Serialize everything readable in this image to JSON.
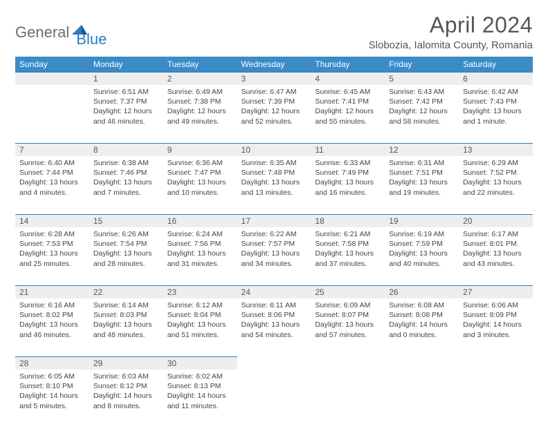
{
  "logo": {
    "part1": "General",
    "part2": "Blue"
  },
  "title": "April 2024",
  "location": "Slobozia, Ialomita County, Romania",
  "colors": {
    "header_bg": "#3b8bc8",
    "daynum_bg": "#eeeeee",
    "border": "#2b7bbf",
    "text": "#444444",
    "title_text": "#555555"
  },
  "weekdays": [
    "Sunday",
    "Monday",
    "Tuesday",
    "Wednesday",
    "Thursday",
    "Friday",
    "Saturday"
  ],
  "weeks": [
    [
      null,
      {
        "n": "1",
        "sr": "Sunrise: 6:51 AM",
        "ss": "Sunset: 7:37 PM",
        "d1": "Daylight: 12 hours",
        "d2": "and 46 minutes."
      },
      {
        "n": "2",
        "sr": "Sunrise: 6:49 AM",
        "ss": "Sunset: 7:38 PM",
        "d1": "Daylight: 12 hours",
        "d2": "and 49 minutes."
      },
      {
        "n": "3",
        "sr": "Sunrise: 6:47 AM",
        "ss": "Sunset: 7:39 PM",
        "d1": "Daylight: 12 hours",
        "d2": "and 52 minutes."
      },
      {
        "n": "4",
        "sr": "Sunrise: 6:45 AM",
        "ss": "Sunset: 7:41 PM",
        "d1": "Daylight: 12 hours",
        "d2": "and 55 minutes."
      },
      {
        "n": "5",
        "sr": "Sunrise: 6:43 AM",
        "ss": "Sunset: 7:42 PM",
        "d1": "Daylight: 12 hours",
        "d2": "and 58 minutes."
      },
      {
        "n": "6",
        "sr": "Sunrise: 6:42 AM",
        "ss": "Sunset: 7:43 PM",
        "d1": "Daylight: 13 hours",
        "d2": "and 1 minute."
      }
    ],
    [
      {
        "n": "7",
        "sr": "Sunrise: 6:40 AM",
        "ss": "Sunset: 7:44 PM",
        "d1": "Daylight: 13 hours",
        "d2": "and 4 minutes."
      },
      {
        "n": "8",
        "sr": "Sunrise: 6:38 AM",
        "ss": "Sunset: 7:46 PM",
        "d1": "Daylight: 13 hours",
        "d2": "and 7 minutes."
      },
      {
        "n": "9",
        "sr": "Sunrise: 6:36 AM",
        "ss": "Sunset: 7:47 PM",
        "d1": "Daylight: 13 hours",
        "d2": "and 10 minutes."
      },
      {
        "n": "10",
        "sr": "Sunrise: 6:35 AM",
        "ss": "Sunset: 7:48 PM",
        "d1": "Daylight: 13 hours",
        "d2": "and 13 minutes."
      },
      {
        "n": "11",
        "sr": "Sunrise: 6:33 AM",
        "ss": "Sunset: 7:49 PM",
        "d1": "Daylight: 13 hours",
        "d2": "and 16 minutes."
      },
      {
        "n": "12",
        "sr": "Sunrise: 6:31 AM",
        "ss": "Sunset: 7:51 PM",
        "d1": "Daylight: 13 hours",
        "d2": "and 19 minutes."
      },
      {
        "n": "13",
        "sr": "Sunrise: 6:29 AM",
        "ss": "Sunset: 7:52 PM",
        "d1": "Daylight: 13 hours",
        "d2": "and 22 minutes."
      }
    ],
    [
      {
        "n": "14",
        "sr": "Sunrise: 6:28 AM",
        "ss": "Sunset: 7:53 PM",
        "d1": "Daylight: 13 hours",
        "d2": "and 25 minutes."
      },
      {
        "n": "15",
        "sr": "Sunrise: 6:26 AM",
        "ss": "Sunset: 7:54 PM",
        "d1": "Daylight: 13 hours",
        "d2": "and 28 minutes."
      },
      {
        "n": "16",
        "sr": "Sunrise: 6:24 AM",
        "ss": "Sunset: 7:56 PM",
        "d1": "Daylight: 13 hours",
        "d2": "and 31 minutes."
      },
      {
        "n": "17",
        "sr": "Sunrise: 6:22 AM",
        "ss": "Sunset: 7:57 PM",
        "d1": "Daylight: 13 hours",
        "d2": "and 34 minutes."
      },
      {
        "n": "18",
        "sr": "Sunrise: 6:21 AM",
        "ss": "Sunset: 7:58 PM",
        "d1": "Daylight: 13 hours",
        "d2": "and 37 minutes."
      },
      {
        "n": "19",
        "sr": "Sunrise: 6:19 AM",
        "ss": "Sunset: 7:59 PM",
        "d1": "Daylight: 13 hours",
        "d2": "and 40 minutes."
      },
      {
        "n": "20",
        "sr": "Sunrise: 6:17 AM",
        "ss": "Sunset: 8:01 PM",
        "d1": "Daylight: 13 hours",
        "d2": "and 43 minutes."
      }
    ],
    [
      {
        "n": "21",
        "sr": "Sunrise: 6:16 AM",
        "ss": "Sunset: 8:02 PM",
        "d1": "Daylight: 13 hours",
        "d2": "and 46 minutes."
      },
      {
        "n": "22",
        "sr": "Sunrise: 6:14 AM",
        "ss": "Sunset: 8:03 PM",
        "d1": "Daylight: 13 hours",
        "d2": "and 48 minutes."
      },
      {
        "n": "23",
        "sr": "Sunrise: 6:12 AM",
        "ss": "Sunset: 8:04 PM",
        "d1": "Daylight: 13 hours",
        "d2": "and 51 minutes."
      },
      {
        "n": "24",
        "sr": "Sunrise: 6:11 AM",
        "ss": "Sunset: 8:06 PM",
        "d1": "Daylight: 13 hours",
        "d2": "and 54 minutes."
      },
      {
        "n": "25",
        "sr": "Sunrise: 6:09 AM",
        "ss": "Sunset: 8:07 PM",
        "d1": "Daylight: 13 hours",
        "d2": "and 57 minutes."
      },
      {
        "n": "26",
        "sr": "Sunrise: 6:08 AM",
        "ss": "Sunset: 8:08 PM",
        "d1": "Daylight: 14 hours",
        "d2": "and 0 minutes."
      },
      {
        "n": "27",
        "sr": "Sunrise: 6:06 AM",
        "ss": "Sunset: 8:09 PM",
        "d1": "Daylight: 14 hours",
        "d2": "and 3 minutes."
      }
    ],
    [
      {
        "n": "28",
        "sr": "Sunrise: 6:05 AM",
        "ss": "Sunset: 8:10 PM",
        "d1": "Daylight: 14 hours",
        "d2": "and 5 minutes."
      },
      {
        "n": "29",
        "sr": "Sunrise: 6:03 AM",
        "ss": "Sunset: 8:12 PM",
        "d1": "Daylight: 14 hours",
        "d2": "and 8 minutes."
      },
      {
        "n": "30",
        "sr": "Sunrise: 6:02 AM",
        "ss": "Sunset: 8:13 PM",
        "d1": "Daylight: 14 hours",
        "d2": "and 11 minutes."
      },
      null,
      null,
      null,
      null
    ]
  ]
}
